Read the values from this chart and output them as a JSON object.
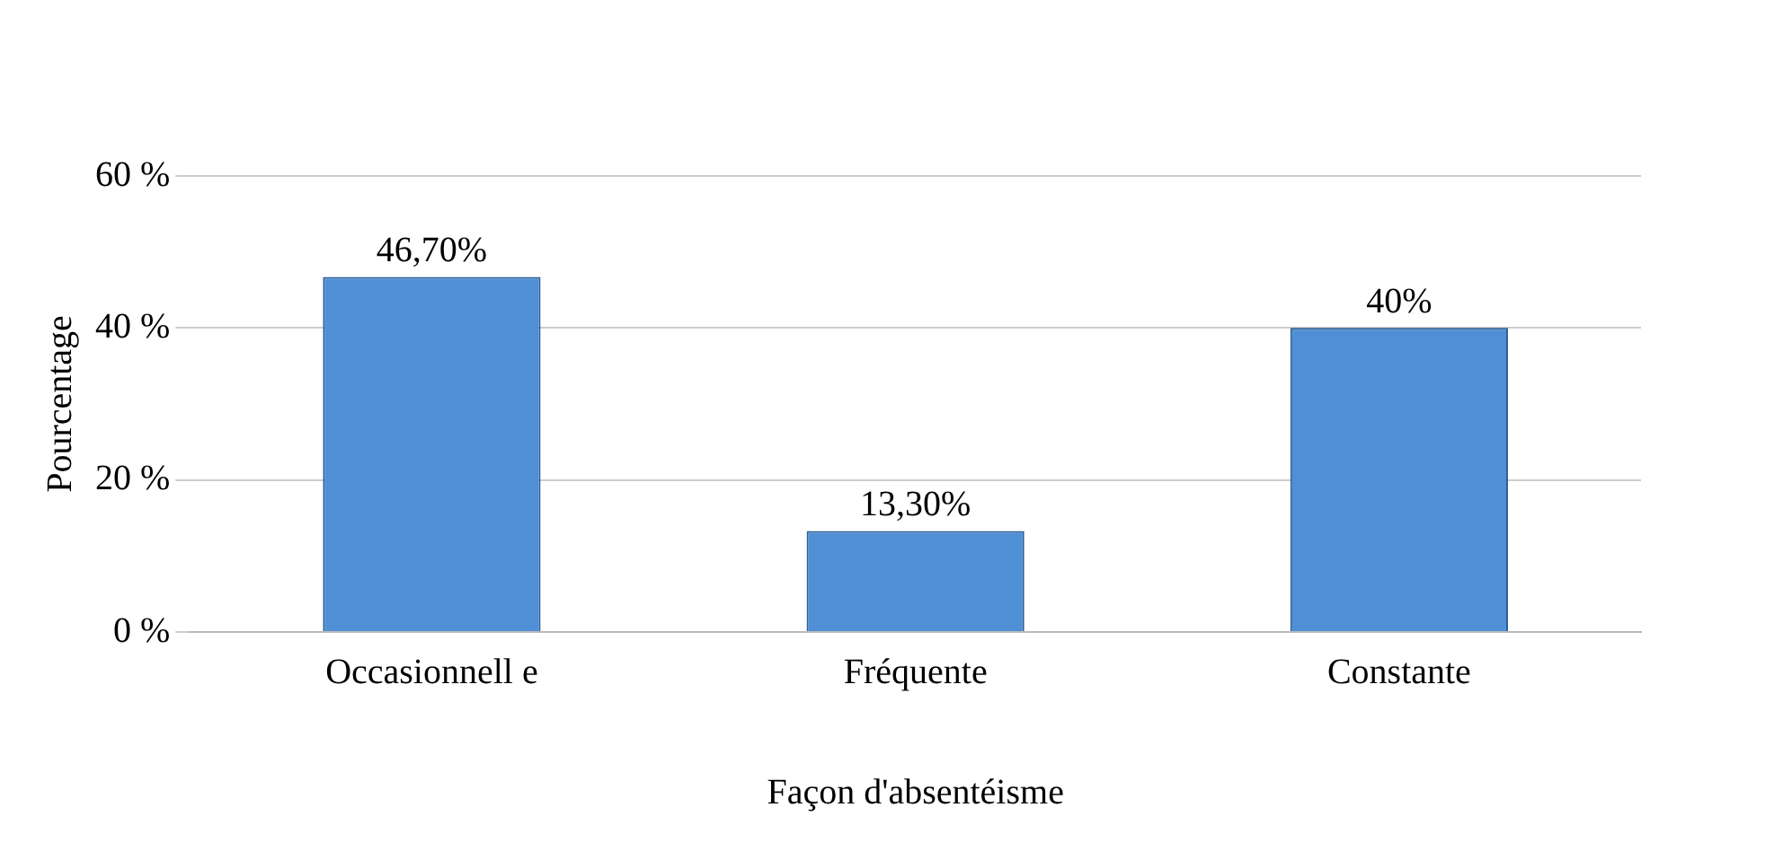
{
  "chart_data": {
    "type": "bar",
    "xlabel": "Façon d'absentéisme",
    "ylabel": "Pourcentage",
    "categories": [
      "Occasionnell e",
      "Fréquente",
      "Constante"
    ],
    "values": [
      46.7,
      13.3,
      40
    ],
    "value_labels": [
      "46,70%",
      "13,30%",
      "40%"
    ],
    "color": "#4f8fd6",
    "ylim": [
      0,
      60
    ],
    "yticks": [
      {
        "value": 0,
        "label": "0 %"
      },
      {
        "value": 20,
        "label": "20 %"
      },
      {
        "value": 40,
        "label": "40 %"
      },
      {
        "value": 60,
        "label": "60 %"
      }
    ],
    "grid": "y"
  }
}
